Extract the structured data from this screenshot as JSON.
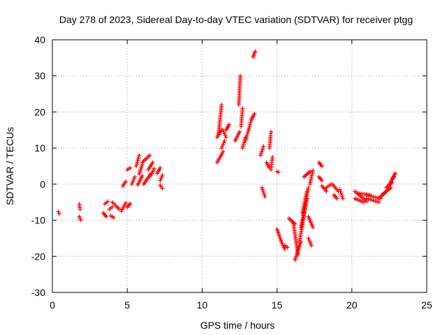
{
  "chart_data": {
    "type": "scatter",
    "title": "Day 278 of 2023, Sidereal Day-to-day VTEC variation (SDTVAR) for receiver ptgg",
    "xlabel": "GPS time / hours",
    "ylabel": "SDTVAR / TECUs",
    "xlim": [
      0,
      25
    ],
    "ylim": [
      -30,
      40
    ],
    "xticks": [
      "0",
      "5",
      "10",
      "15",
      "20",
      "25"
    ],
    "yticks": [
      "-30",
      "-20",
      "-10",
      "0",
      "10",
      "20",
      "30",
      "40"
    ],
    "grid": true,
    "marker": "+",
    "colors": {
      "marker": "#ff0000",
      "grid": "#a0a0a0",
      "axis": "#000000"
    },
    "segments": [
      [
        0.4,
        -7.6,
        0.45,
        -8.2
      ],
      [
        1.8,
        -5.5,
        1.85,
        -7.0
      ],
      [
        1.8,
        -9.0,
        1.9,
        -10.0
      ],
      [
        3.4,
        -8.0,
        3.6,
        -9.0
      ],
      [
        3.5,
        -5.5,
        3.7,
        -4.8
      ],
      [
        3.8,
        -7.0,
        4.0,
        -6.3
      ],
      [
        3.9,
        -8.8,
        4.1,
        -9.3
      ],
      [
        4.0,
        -5.0,
        4.2,
        -5.8
      ],
      [
        4.3,
        -6.2,
        4.45,
        -6.9
      ],
      [
        4.6,
        -7.5,
        4.9,
        -5.2
      ],
      [
        4.7,
        -0.5,
        4.9,
        0.7
      ],
      [
        5.0,
        -6.4,
        5.2,
        -5.4
      ],
      [
        5.0,
        4.0,
        5.2,
        4.5
      ],
      [
        5.3,
        0.0,
        5.5,
        2.0
      ],
      [
        5.6,
        5.0,
        5.8,
        8.0
      ],
      [
        5.8,
        2.8,
        6.0,
        5.5
      ],
      [
        5.7,
        -0.2,
        6.0,
        2.3
      ],
      [
        6.0,
        6.0,
        6.5,
        8.0
      ],
      [
        6.1,
        0.0,
        6.6,
        3.0
      ],
      [
        6.4,
        4.0,
        6.7,
        6.0
      ],
      [
        6.6,
        2.5,
        6.8,
        4.3
      ],
      [
        7.0,
        3.0,
        7.2,
        4.5
      ],
      [
        7.2,
        1.0,
        7.35,
        2.5
      ],
      [
        7.2,
        -0.3,
        7.35,
        -1.2
      ],
      [
        11.0,
        13.0,
        11.3,
        15.0
      ],
      [
        11.0,
        6.0,
        11.4,
        9.0
      ],
      [
        11.1,
        14.0,
        11.3,
        22.0
      ],
      [
        11.3,
        10.0,
        11.5,
        12.0
      ],
      [
        11.4,
        15.0,
        11.6,
        13.0
      ],
      [
        11.6,
        15.0,
        11.8,
        16.5
      ],
      [
        12.2,
        12.0,
        12.5,
        14.5
      ],
      [
        12.45,
        22.0,
        12.55,
        30.0
      ],
      [
        12.6,
        16.0,
        12.7,
        21.0
      ],
      [
        12.7,
        10.0,
        12.9,
        13.0
      ],
      [
        12.9,
        12.0,
        13.1,
        15.0
      ],
      [
        13.1,
        15.0,
        13.3,
        18.0
      ],
      [
        13.3,
        18.0,
        13.5,
        19.5
      ],
      [
        13.4,
        35.2,
        13.55,
        36.8
      ],
      [
        13.9,
        8.0,
        14.1,
        10.5
      ],
      [
        14.0,
        -1.0,
        14.2,
        -3.5
      ],
      [
        14.3,
        6.0,
        14.5,
        4.5
      ],
      [
        14.5,
        10.0,
        14.6,
        14.5
      ],
      [
        14.6,
        4.0,
        14.7,
        7.5
      ],
      [
        15.0,
        3.5,
        15.1,
        3.3
      ],
      [
        15.0,
        -12.5,
        15.3,
        -16.0
      ],
      [
        15.3,
        -16.0,
        15.5,
        -18.0
      ],
      [
        15.5,
        -17.0,
        15.7,
        -17.5
      ],
      [
        15.8,
        -9.5,
        16.2,
        -11.0
      ],
      [
        16.1,
        -11.0,
        16.4,
        -19.5
      ],
      [
        16.2,
        -21.0,
        16.6,
        -16.0
      ],
      [
        16.5,
        -16.0,
        17.0,
        -4.0
      ],
      [
        16.6,
        -12.0,
        17.1,
        -1.0
      ],
      [
        16.7,
        -8.0,
        17.0,
        -2.0
      ],
      [
        16.8,
        2.0,
        17.2,
        3.5
      ],
      [
        17.2,
        0.0,
        17.4,
        3.8
      ],
      [
        17.1,
        -9.0,
        17.4,
        -12.0
      ],
      [
        17.1,
        -15.0,
        17.3,
        -17.0
      ],
      [
        17.8,
        6.0,
        18.0,
        5.0
      ],
      [
        17.8,
        2.0,
        18.0,
        1.0
      ],
      [
        18.0,
        -0.5,
        18.3,
        -2.0
      ],
      [
        18.3,
        -1.0,
        18.6,
        0.0
      ],
      [
        18.7,
        0.0,
        19.1,
        -2.0
      ],
      [
        18.8,
        -3.0,
        19.0,
        -4.0
      ],
      [
        19.2,
        -1.5,
        19.4,
        -4.0
      ],
      [
        20.2,
        -2.0,
        21.0,
        -4.8
      ],
      [
        20.2,
        -4.0,
        20.8,
        -5.0
      ],
      [
        20.4,
        -2.5,
        21.2,
        -3.0
      ],
      [
        21.0,
        -4.0,
        21.8,
        -5.0
      ],
      [
        21.0,
        -3.0,
        21.9,
        -4.0
      ],
      [
        21.8,
        -4.0,
        22.3,
        -2.0
      ],
      [
        22.0,
        -3.0,
        22.6,
        -1.0
      ],
      [
        22.3,
        -1.0,
        22.7,
        0.5
      ],
      [
        22.5,
        0.0,
        22.8,
        2.0
      ],
      [
        22.7,
        1.5,
        22.9,
        3.0
      ]
    ]
  }
}
